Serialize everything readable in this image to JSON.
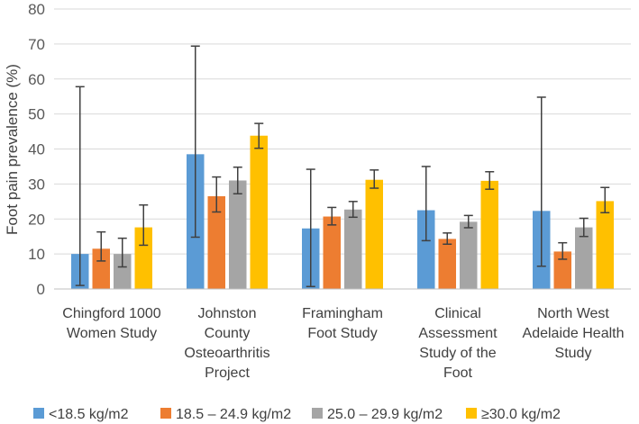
{
  "chart_data": {
    "type": "bar",
    "title": "",
    "xlabel": "",
    "ylabel": "Foot pain prevalence (%)",
    "ylim": [
      0,
      80
    ],
    "yticks": [
      0,
      10,
      20,
      30,
      40,
      50,
      60,
      70,
      80
    ],
    "grid": true,
    "legend_position": "bottom",
    "categories": [
      [
        "Chingford 1000",
        "Women Study"
      ],
      [
        "Johnston",
        "County",
        "Osteoarthritis",
        "Project"
      ],
      [
        "Framingham",
        "Foot Study"
      ],
      [
        "Clinical",
        "Assessment",
        "Study of the",
        "Foot"
      ],
      [
        "North West",
        "Adelaide Health",
        "Study"
      ]
    ],
    "series": [
      {
        "name": "<18.5 kg/m2",
        "color": "#5b9bd5",
        "values": [
          10.0,
          38.5,
          17.3,
          22.5,
          22.3
        ],
        "error_low": [
          1.0,
          14.8,
          0.7,
          13.8,
          6.5
        ],
        "error_high": [
          57.8,
          69.4,
          34.2,
          35.0,
          54.8
        ]
      },
      {
        "name": "18.5 – 24.9 kg/m2",
        "color": "#ed7d31",
        "values": [
          11.5,
          26.5,
          20.7,
          14.3,
          10.7
        ],
        "error_low": [
          8.0,
          22.0,
          18.3,
          12.8,
          8.5
        ],
        "error_high": [
          16.3,
          32.0,
          23.3,
          16.0,
          13.2
        ]
      },
      {
        "name": "25.0 – 29.9 kg/m2",
        "color": "#a5a5a5",
        "values": [
          10.0,
          31.0,
          22.7,
          19.2,
          17.6
        ],
        "error_low": [
          6.3,
          27.2,
          20.5,
          17.5,
          15.0
        ],
        "error_high": [
          14.5,
          34.8,
          25.0,
          21.0,
          20.2
        ]
      },
      {
        "name": "≥30.0 kg/m2",
        "color": "#ffc000",
        "values": [
          17.6,
          43.8,
          31.2,
          30.9,
          25.1
        ],
        "error_low": [
          12.5,
          40.2,
          28.8,
          28.5,
          21.8
        ],
        "error_high": [
          24.0,
          47.3,
          34.0,
          33.5,
          29.0
        ]
      }
    ]
  }
}
